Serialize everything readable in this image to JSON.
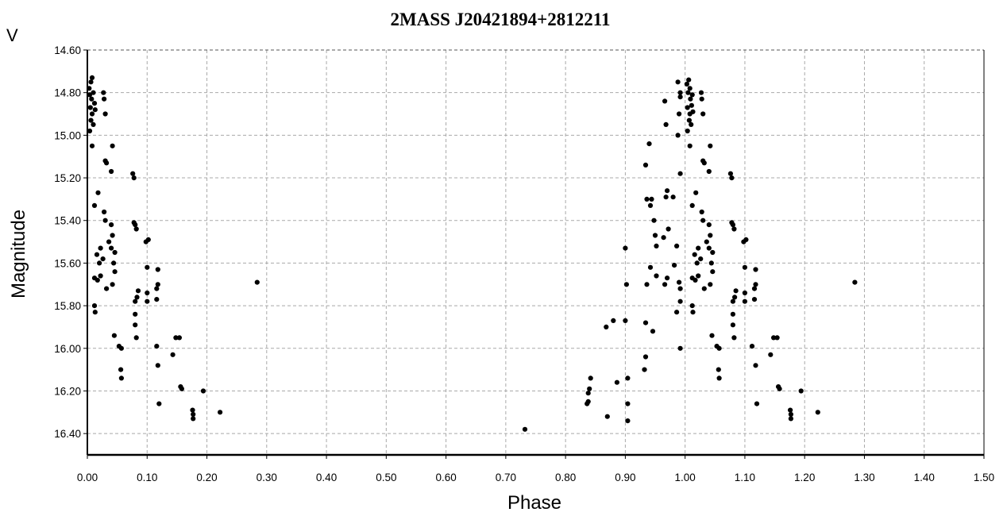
{
  "chart_data": {
    "type": "scatter",
    "title": "2MASS J20421894+2812211",
    "xlabel": "Phase",
    "ylabel": "Magnitude",
    "band_label": "V",
    "xlim": [
      0,
      1.5
    ],
    "ylim": [
      14.6,
      16.5
    ],
    "y_inverted": true,
    "grid": true,
    "legend": "none",
    "point_color": "#000000",
    "x_ticks": [
      "0.00",
      "0.10",
      "0.20",
      "0.30",
      "0.40",
      "0.50",
      "0.60",
      "0.70",
      "0.80",
      "0.90",
      "1.00",
      "1.10",
      "1.20",
      "1.30",
      "1.40",
      "1.50"
    ],
    "y_ticks": [
      "14.60",
      "14.80",
      "15.00",
      "15.20",
      "15.40",
      "15.60",
      "15.80",
      "16.00",
      "16.20",
      "16.40"
    ],
    "points": [
      [
        0.003,
        14.78
      ],
      [
        0.006,
        14.75
      ],
      [
        0.008,
        14.73
      ],
      [
        0.004,
        14.81
      ],
      [
        0.007,
        14.83
      ],
      [
        0.01,
        14.8
      ],
      [
        0.005,
        14.87
      ],
      [
        0.008,
        14.9
      ],
      [
        0.012,
        14.85
      ],
      [
        0.006,
        14.93
      ],
      [
        0.01,
        14.95
      ],
      [
        0.013,
        14.88
      ],
      [
        0.004,
        14.98
      ],
      [
        0.008,
        15.05
      ],
      [
        0.027,
        14.8
      ],
      [
        0.028,
        14.83
      ],
      [
        0.03,
        14.9
      ],
      [
        0.03,
        15.12
      ],
      [
        0.032,
        15.13
      ],
      [
        0.042,
        15.05
      ],
      [
        0.04,
        15.17
      ],
      [
        0.018,
        15.27
      ],
      [
        0.012,
        15.33
      ],
      [
        0.028,
        15.36
      ],
      [
        0.03,
        15.4
      ],
      [
        0.04,
        15.42
      ],
      [
        0.042,
        15.47
      ],
      [
        0.036,
        15.5
      ],
      [
        0.04,
        15.53
      ],
      [
        0.046,
        15.55
      ],
      [
        0.022,
        15.53
      ],
      [
        0.016,
        15.56
      ],
      [
        0.02,
        15.6
      ],
      [
        0.026,
        15.58
      ],
      [
        0.044,
        15.6
      ],
      [
        0.046,
        15.64
      ],
      [
        0.012,
        15.67
      ],
      [
        0.017,
        15.68
      ],
      [
        0.022,
        15.66
      ],
      [
        0.032,
        15.72
      ],
      [
        0.042,
        15.7
      ],
      [
        0.012,
        15.8
      ],
      [
        0.013,
        15.83
      ],
      [
        0.045,
        15.94
      ],
      [
        0.053,
        15.99
      ],
      [
        0.057,
        16.0
      ],
      [
        0.056,
        16.1
      ],
      [
        0.057,
        16.14
      ],
      [
        0.076,
        15.18
      ],
      [
        0.078,
        15.2
      ],
      [
        0.078,
        15.41
      ],
      [
        0.08,
        15.42
      ],
      [
        0.082,
        15.44
      ],
      [
        0.098,
        15.5
      ],
      [
        0.102,
        15.49
      ],
      [
        0.1,
        15.62
      ],
      [
        0.085,
        15.73
      ],
      [
        0.083,
        15.76
      ],
      [
        0.08,
        15.78
      ],
      [
        0.1,
        15.74
      ],
      [
        0.1,
        15.78
      ],
      [
        0.08,
        15.84
      ],
      [
        0.08,
        15.89
      ],
      [
        0.082,
        15.95
      ],
      [
        0.118,
        15.63
      ],
      [
        0.118,
        15.7
      ],
      [
        0.116,
        15.72
      ],
      [
        0.116,
        15.77
      ],
      [
        0.116,
        15.99
      ],
      [
        0.118,
        16.08
      ],
      [
        0.12,
        16.26
      ],
      [
        0.143,
        16.03
      ],
      [
        0.148,
        15.95
      ],
      [
        0.154,
        15.95
      ],
      [
        0.156,
        16.18
      ],
      [
        0.158,
        16.19
      ],
      [
        0.176,
        16.29
      ],
      [
        0.177,
        16.31
      ],
      [
        0.177,
        16.33
      ],
      [
        0.194,
        16.2
      ],
      [
        0.222,
        16.3
      ],
      [
        0.284,
        15.69
      ],
      [
        0.732,
        16.38
      ],
      [
        0.836,
        16.26
      ],
      [
        0.838,
        16.21
      ],
      [
        0.84,
        16.19
      ],
      [
        0.842,
        16.14
      ],
      [
        0.838,
        16.25
      ],
      [
        0.868,
        15.9
      ],
      [
        0.88,
        15.87
      ],
      [
        0.886,
        16.16
      ],
      [
        0.87,
        16.32
      ],
      [
        0.9,
        15.53
      ],
      [
        0.902,
        15.7
      ],
      [
        0.9,
        15.87
      ],
      [
        0.904,
        16.14
      ],
      [
        0.904,
        16.26
      ],
      [
        0.904,
        16.34
      ],
      [
        0.934,
        15.14
      ],
      [
        0.94,
        15.04
      ],
      [
        0.936,
        15.3
      ],
      [
        0.944,
        15.3
      ],
      [
        0.942,
        15.33
      ],
      [
        0.948,
        15.4
      ],
      [
        0.95,
        15.47
      ],
      [
        0.952,
        15.52
      ],
      [
        0.942,
        15.62
      ],
      [
        0.936,
        15.7
      ],
      [
        0.952,
        15.66
      ],
      [
        0.934,
        15.88
      ],
      [
        0.946,
        15.92
      ],
      [
        0.934,
        16.04
      ],
      [
        0.932,
        16.1
      ],
      [
        0.966,
        14.84
      ],
      [
        0.968,
        14.95
      ],
      [
        0.97,
        15.26
      ],
      [
        0.968,
        15.29
      ],
      [
        0.972,
        15.44
      ],
      [
        0.964,
        15.48
      ],
      [
        0.97,
        15.67
      ],
      [
        0.966,
        15.7
      ],
      [
        0.98,
        15.29
      ],
      [
        0.986,
        15.52
      ],
      [
        0.982,
        15.61
      ],
      [
        0.986,
        15.83
      ],
      [
        0.988,
        14.75
      ],
      [
        0.992,
        14.8
      ],
      [
        0.992,
        14.82
      ],
      [
        0.99,
        14.9
      ],
      [
        0.988,
        15.0
      ],
      [
        0.992,
        15.18
      ],
      [
        0.99,
        15.69
      ],
      [
        0.992,
        15.72
      ],
      [
        0.992,
        15.78
      ],
      [
        0.992,
        16.0
      ],
      [
        1.003,
        14.76
      ],
      [
        1.006,
        14.74
      ],
      [
        1.008,
        14.78
      ],
      [
        1.005,
        14.8
      ],
      [
        1.009,
        14.83
      ],
      [
        1.012,
        14.81
      ],
      [
        1.004,
        14.87
      ],
      [
        1.008,
        14.9
      ],
      [
        1.011,
        14.86
      ],
      [
        1.007,
        14.93
      ],
      [
        1.01,
        14.95
      ],
      [
        1.013,
        14.89
      ],
      [
        1.004,
        14.98
      ],
      [
        1.008,
        15.05
      ],
      [
        1.027,
        14.8
      ],
      [
        1.028,
        14.83
      ],
      [
        1.03,
        14.9
      ],
      [
        1.03,
        15.12
      ],
      [
        1.032,
        15.13
      ],
      [
        1.042,
        15.05
      ],
      [
        1.04,
        15.17
      ],
      [
        1.018,
        15.27
      ],
      [
        1.012,
        15.33
      ],
      [
        1.028,
        15.36
      ],
      [
        1.03,
        15.4
      ],
      [
        1.04,
        15.42
      ],
      [
        1.042,
        15.47
      ],
      [
        1.036,
        15.5
      ],
      [
        1.04,
        15.53
      ],
      [
        1.046,
        15.55
      ],
      [
        1.022,
        15.53
      ],
      [
        1.016,
        15.56
      ],
      [
        1.02,
        15.6
      ],
      [
        1.026,
        15.58
      ],
      [
        1.044,
        15.6
      ],
      [
        1.046,
        15.64
      ],
      [
        1.012,
        15.67
      ],
      [
        1.017,
        15.68
      ],
      [
        1.022,
        15.66
      ],
      [
        1.032,
        15.72
      ],
      [
        1.042,
        15.7
      ],
      [
        1.012,
        15.8
      ],
      [
        1.013,
        15.83
      ],
      [
        1.045,
        15.94
      ],
      [
        1.053,
        15.99
      ],
      [
        1.057,
        16.0
      ],
      [
        1.056,
        16.1
      ],
      [
        1.057,
        16.14
      ],
      [
        1.076,
        15.18
      ],
      [
        1.078,
        15.2
      ],
      [
        1.078,
        15.41
      ],
      [
        1.08,
        15.42
      ],
      [
        1.082,
        15.44
      ],
      [
        1.098,
        15.5
      ],
      [
        1.102,
        15.49
      ],
      [
        1.1,
        15.62
      ],
      [
        1.085,
        15.73
      ],
      [
        1.083,
        15.76
      ],
      [
        1.08,
        15.78
      ],
      [
        1.1,
        15.74
      ],
      [
        1.1,
        15.78
      ],
      [
        1.08,
        15.84
      ],
      [
        1.08,
        15.89
      ],
      [
        1.082,
        15.95
      ],
      [
        1.118,
        15.63
      ],
      [
        1.118,
        15.7
      ],
      [
        1.116,
        15.72
      ],
      [
        1.116,
        15.77
      ],
      [
        1.112,
        15.99
      ],
      [
        1.118,
        16.08
      ],
      [
        1.12,
        16.26
      ],
      [
        1.143,
        16.03
      ],
      [
        1.148,
        15.95
      ],
      [
        1.154,
        15.95
      ],
      [
        1.156,
        16.18
      ],
      [
        1.158,
        16.19
      ],
      [
        1.176,
        16.29
      ],
      [
        1.177,
        16.31
      ],
      [
        1.177,
        16.33
      ],
      [
        1.194,
        16.2
      ],
      [
        1.222,
        16.3
      ],
      [
        1.284,
        15.69
      ]
    ]
  }
}
